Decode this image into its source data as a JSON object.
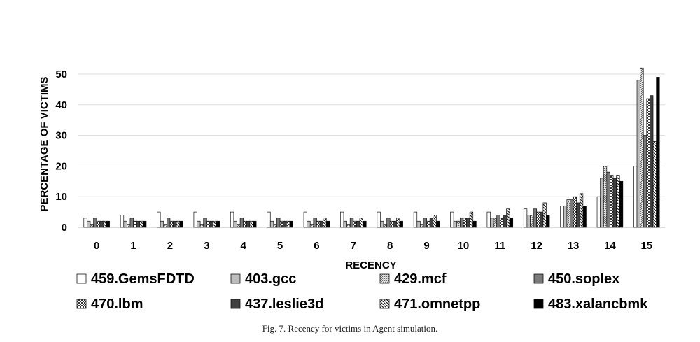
{
  "chart_data": {
    "type": "bar",
    "xlabel": "RECENCY",
    "ylabel": "PERCENTAGE OF VICTIMS",
    "ylim": [
      0,
      50
    ],
    "yticks": [
      0,
      10,
      20,
      30,
      40,
      50
    ],
    "grid": true,
    "legend_position": "bottom",
    "categories": [
      "0",
      "1",
      "2",
      "3",
      "4",
      "5",
      "6",
      "7",
      "8",
      "9",
      "10",
      "11",
      "12",
      "13",
      "14",
      "15"
    ],
    "series": [
      {
        "name": "459.GemsFDTD",
        "pattern": "white",
        "values": [
          3,
          4,
          5,
          5,
          5,
          5,
          5,
          5,
          5,
          5,
          5,
          5,
          6,
          7,
          10,
          20
        ]
      },
      {
        "name": "403.gcc",
        "pattern": "lightgray",
        "values": [
          2,
          2,
          2,
          2,
          2,
          2,
          2,
          2,
          2,
          2,
          2,
          3,
          4,
          7,
          16,
          48
        ]
      },
      {
        "name": "429.mcf",
        "pattern": "hatch-light",
        "values": [
          1,
          1,
          1,
          1,
          1,
          1,
          1,
          1,
          1,
          1,
          2,
          3,
          4,
          9,
          20,
          52
        ]
      },
      {
        "name": "450.soplex",
        "pattern": "darkgray",
        "values": [
          3,
          3,
          3,
          3,
          3,
          3,
          3,
          3,
          3,
          3,
          3,
          4,
          6,
          9,
          18,
          30
        ]
      },
      {
        "name": "470.lbm",
        "pattern": "checker",
        "values": [
          2,
          2,
          2,
          2,
          2,
          2,
          2,
          2,
          2,
          2,
          3,
          3,
          5,
          10,
          17,
          42
        ]
      },
      {
        "name": "437.leslie3d",
        "pattern": "charcoal",
        "values": [
          2,
          2,
          2,
          2,
          2,
          2,
          2,
          2,
          2,
          3,
          3,
          4,
          5,
          8,
          16,
          43
        ]
      },
      {
        "name": "471.omnetpp",
        "pattern": "hatch-bold",
        "values": [
          2,
          2,
          2,
          2,
          2,
          2,
          3,
          3,
          3,
          4,
          5,
          6,
          8,
          11,
          17,
          28
        ]
      },
      {
        "name": "483.xalancbmk",
        "pattern": "black",
        "values": [
          2,
          2,
          2,
          2,
          2,
          2,
          2,
          2,
          2,
          2,
          2,
          3,
          4,
          7,
          15,
          49
        ]
      }
    ]
  },
  "caption": "Fig. 7.  Recency for victims in Agent simulation."
}
